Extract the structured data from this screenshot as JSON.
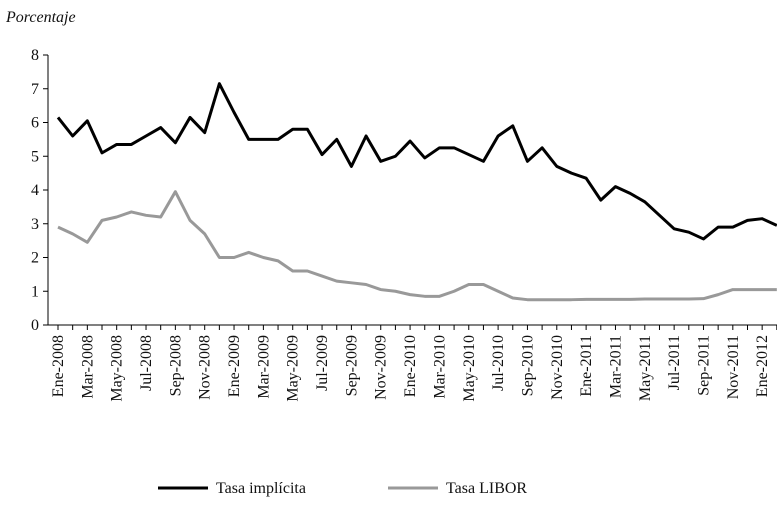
{
  "chart_data": {
    "type": "line",
    "y_label": "Porcentaje",
    "categories": [
      "Ene-2008",
      null,
      "Mar-2008",
      null,
      "May-2008",
      null,
      "Jul-2008",
      null,
      "Sep-2008",
      null,
      "Nov-2008",
      null,
      "Ene-2009",
      null,
      "Mar-2009",
      null,
      "May-2009",
      null,
      "Jul-2009",
      null,
      "Sep-2009",
      null,
      "Nov-2009",
      null,
      "Ene-2010",
      null,
      "Mar-2010",
      null,
      "May-2010",
      null,
      "Jul-2010",
      null,
      "Sep-2010",
      null,
      "Nov-2010",
      null,
      "Ene-2011",
      null,
      "Mar-2011",
      null,
      "May-2011",
      null,
      "Jul-2011",
      null,
      "Sep-2011",
      null,
      "Nov-2011",
      null,
      "Ene-2012",
      null
    ],
    "series": [
      {
        "name": "Tasa implícita",
        "color": "#000000",
        "values": [
          6.15,
          5.6,
          6.05,
          5.1,
          5.35,
          5.35,
          5.6,
          5.85,
          5.4,
          6.15,
          5.7,
          7.15,
          6.3,
          5.5,
          5.5,
          5.5,
          5.8,
          5.8,
          5.05,
          5.5,
          4.7,
          5.6,
          4.85,
          5.0,
          5.45,
          4.95,
          5.25,
          5.25,
          5.05,
          4.85,
          5.6,
          5.9,
          4.85,
          5.25,
          4.7,
          4.5,
          4.35,
          3.7,
          4.1,
          3.9,
          3.65,
          3.25,
          2.85,
          2.75,
          2.55,
          2.9,
          2.9,
          3.1,
          3.15,
          2.95
        ]
      },
      {
        "name": "Tasa LIBOR",
        "color": "#999999",
        "values": [
          2.9,
          2.7,
          2.45,
          3.1,
          3.2,
          3.35,
          3.25,
          3.2,
          3.95,
          3.1,
          2.7,
          2.0,
          2.0,
          2.15,
          2.0,
          1.9,
          1.6,
          1.6,
          1.45,
          1.3,
          1.25,
          1.2,
          1.05,
          1.0,
          0.9,
          0.85,
          0.85,
          1.0,
          1.2,
          1.2,
          1.0,
          0.8,
          0.75,
          0.75,
          0.75,
          0.75,
          0.76,
          0.76,
          0.76,
          0.76,
          0.77,
          0.77,
          0.77,
          0.77,
          0.78,
          0.9,
          1.05,
          1.05,
          1.05,
          1.05
        ]
      }
    ],
    "ylim": [
      0,
      8
    ],
    "yticks": [
      0,
      1,
      2,
      3,
      4,
      5,
      6,
      7,
      8
    ],
    "grid": false
  }
}
